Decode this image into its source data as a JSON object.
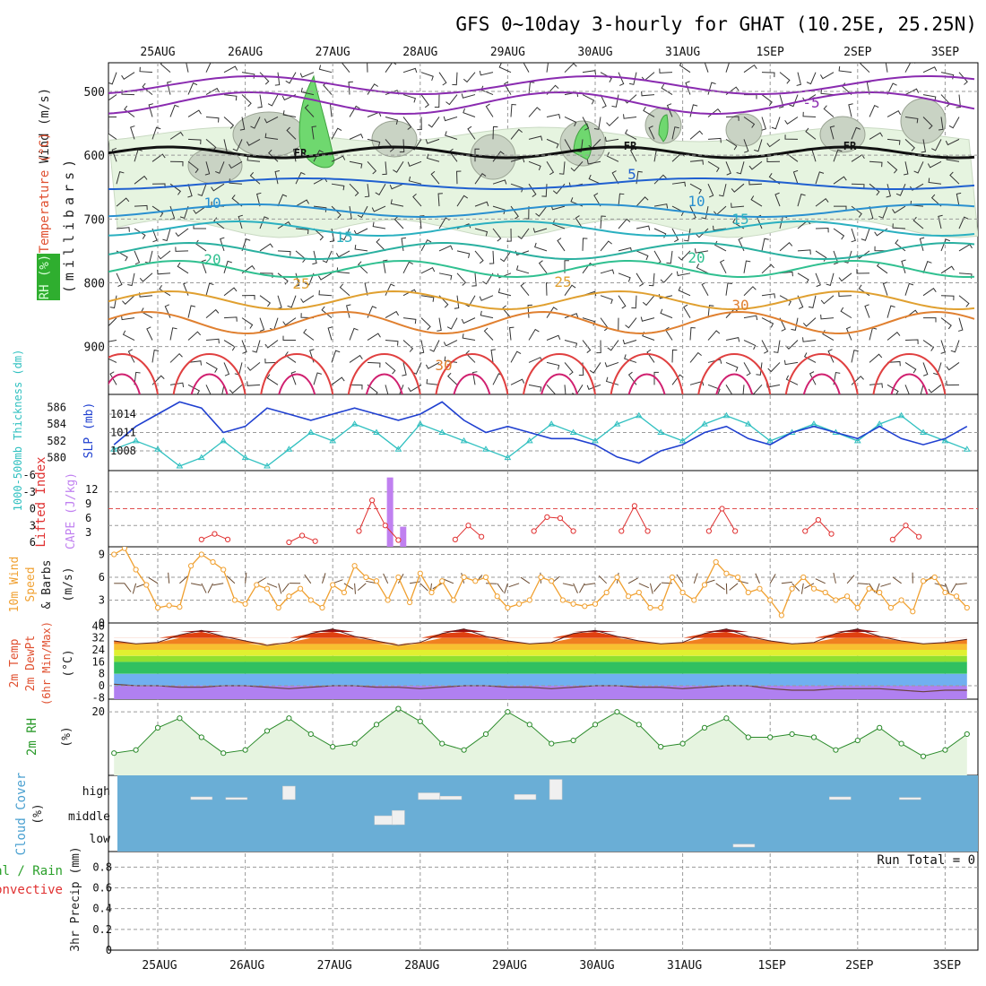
{
  "title": "GFS 0~10day 3-hourly for GHAT (10.25E, 25.25N)",
  "time_axis": {
    "top_labels": [
      "25AUG",
      "26AUG",
      "27AUG",
      "28AUG",
      "29AUG",
      "30AUG",
      "31AUG",
      "1SEP",
      "2SEP",
      "3SEP"
    ],
    "bottom_labels": [
      "25AUG",
      "26AUG",
      "27AUG",
      "28AUG",
      "29AUG",
      "30AUG",
      "31AUG",
      "1SEP",
      "2SEP",
      "3SEP"
    ],
    "start_day_offset": -0.55,
    "end_day_offset": 9.3
  },
  "colors": {
    "rh_green": "#7fdc7f",
    "rh_dark": "#3fbf3f",
    "sky": "#6aaed6",
    "cloud": "#f0f0f0",
    "grid": "#9a9a9a",
    "wind_orange": "#f0a030",
    "cape_violet": "#c080f0",
    "li_red": "#e03030",
    "slp_blue": "#2040d0",
    "thk_cyan": "#30c0c0"
  },
  "panels": {
    "upper": {
      "ylabel_wind": "Wind (m/s)",
      "ylabel_temp": "Temperature (°C)",
      "ylabel_rh": "RH (%)",
      "ylabel_pressure": "(millibars)",
      "pressure_ticks": [
        "500",
        "600",
        "700",
        "800",
        "900"
      ],
      "pressure_range": [
        455,
        975
      ],
      "freezing_label": "FR",
      "contour_labels": [
        "-5",
        "5",
        "10",
        "10",
        "15",
        "15",
        "20",
        "20",
        "25",
        "25",
        "30",
        "30",
        "30",
        "30",
        "30"
      ]
    },
    "slp": {
      "ylabel_thickness": "1000-500mb Thickness (dm)",
      "ylabel_slp": "SLP (mb)",
      "left_ticks": [
        "586",
        "584",
        "582",
        "580"
      ],
      "right_ticks": [
        "1014",
        "1011",
        "1008"
      ]
    },
    "cape": {
      "ylabel_li": "Lifted Index",
      "ylabel_cape": "CAPE (J/kg)",
      "left_ticks": [
        "-6",
        "-3",
        "0",
        "3",
        "6"
      ],
      "right_ticks": [
        "12",
        "9",
        "6",
        "3"
      ]
    },
    "wind10": {
      "ylabel": "10m Wind Speed & Barbs",
      "units": "(m/s)",
      "ticks": [
        "9",
        "6",
        "3",
        "0"
      ]
    },
    "temp2m": {
      "ylabel": "2m Temp 2m DewPt (6hr Min/Max)",
      "units": "(°C)",
      "ticks": [
        "40",
        "32",
        "24",
        "16",
        "8",
        "0",
        "-8"
      ]
    },
    "rh2m": {
      "ylabel": "2m RH",
      "units": "(%)",
      "ticks": [
        "20"
      ]
    },
    "cloud": {
      "ylabel": "Cloud Cover",
      "units": "(%)",
      "levels": [
        "high",
        "middle",
        "low"
      ]
    },
    "precip": {
      "ylabel_total": "Total / Rain",
      "ylabel_conv": "Convective",
      "ylabel_units": "3hr Precip (mm)",
      "ticks": [
        "0.8",
        "0.6",
        "0.4",
        "0.2",
        "0"
      ],
      "run_total": "Run Total = 0"
    }
  },
  "chart_data": [
    {
      "type": "line",
      "name_key": "slp",
      "x": [
        -0.5,
        -0.25,
        0,
        0.25,
        0.5,
        0.75,
        1,
        1.25,
        1.5,
        1.75,
        2,
        2.25,
        2.5,
        2.75,
        3,
        3.25,
        3.5,
        3.75,
        4,
        4.25,
        4.5,
        4.75,
        5,
        5.25,
        5.5,
        5.75,
        6,
        6.25,
        6.5,
        6.75,
        7,
        7.25,
        7.5,
        7.75,
        8,
        8.25,
        8.5,
        8.75,
        9,
        9.25
      ],
      "series": [
        {
          "name": "SLP (mb)",
          "values": [
            1009,
            1012,
            1014,
            1016,
            1015,
            1011,
            1012,
            1015,
            1014,
            1013,
            1014,
            1015,
            1014,
            1013,
            1014,
            1016,
            1013,
            1011,
            1012,
            1011,
            1010,
            1010,
            1009,
            1007,
            1006,
            1008,
            1009,
            1011,
            1012,
            1010,
            1009,
            1011,
            1012,
            1011,
            1010,
            1012,
            1010,
            1009,
            1010,
            1012
          ]
        },
        {
          "name": "1000-500mb Thickness (dm)",
          "values": [
            581,
            582,
            581,
            579,
            580,
            582,
            580,
            579,
            581,
            583,
            582,
            584,
            583,
            581,
            584,
            583,
            582,
            581,
            580,
            582,
            584,
            583,
            582,
            584,
            585,
            583,
            582,
            584,
            585,
            584,
            582,
            583,
            584,
            583,
            582,
            584,
            585,
            583,
            582,
            581
          ]
        }
      ],
      "ylim_slp": [
        1005.5,
        1016.5
      ],
      "ylim_thickness": [
        579,
        587
      ]
    },
    {
      "type": "line",
      "name_key": "lifted_index",
      "x": [
        0.5,
        0.65,
        0.8,
        1.5,
        1.65,
        1.8,
        2.3,
        2.45,
        2.6,
        2.75,
        3.4,
        3.55,
        3.7,
        4.3,
        4.45,
        4.6,
        4.75,
        5.3,
        5.45,
        5.6,
        6.3,
        6.45,
        6.6,
        7.4,
        7.55,
        7.7,
        8.4,
        8.55,
        8.7
      ],
      "values": [
        5.5,
        4.5,
        5.5,
        6,
        4.8,
        5.8,
        4,
        -1.5,
        3,
        5.6,
        5.5,
        3,
        5,
        4,
        1.5,
        1.7,
        4,
        4,
        -0.5,
        4,
        4,
        0,
        4,
        4,
        2,
        4.5,
        5.5,
        3,
        5
      ],
      "ylim": [
        6,
        -6
      ]
    },
    {
      "type": "bar",
      "name_key": "cape",
      "x": [
        2.65,
        2.8
      ],
      "values": [
        14.5,
        4.2
      ],
      "ylim": [
        0,
        15
      ]
    },
    {
      "type": "line",
      "name_key": "wind_speed_10m",
      "x": [
        -0.5,
        -0.38,
        -0.25,
        -0.13,
        0,
        0.13,
        0.25,
        0.38,
        0.5,
        0.63,
        0.75,
        0.88,
        1,
        1.13,
        1.25,
        1.38,
        1.5,
        1.63,
        1.75,
        1.88,
        2,
        2.13,
        2.25,
        2.38,
        2.5,
        2.63,
        2.75,
        2.88,
        3,
        3.13,
        3.25,
        3.38,
        3.5,
        3.63,
        3.75,
        3.88,
        4,
        4.13,
        4.25,
        4.38,
        4.5,
        4.63,
        4.75,
        4.88,
        5,
        5.13,
        5.25,
        5.38,
        5.5,
        5.63,
        5.75,
        5.88,
        6,
        6.13,
        6.25,
        6.38,
        6.5,
        6.63,
        6.75,
        6.88,
        7,
        7.13,
        7.25,
        7.38,
        7.5,
        7.63,
        7.75,
        7.88,
        8,
        8.13,
        8.25,
        8.38,
        8.5,
        8.63,
        8.75,
        8.88,
        9,
        9.13,
        9.25
      ],
      "values": [
        9,
        9.8,
        7,
        5,
        2,
        2.3,
        2.1,
        7.5,
        9,
        8,
        7,
        3,
        2.5,
        5,
        4.5,
        2,
        3.5,
        4.5,
        3,
        2,
        5,
        4,
        7.5,
        6,
        5.5,
        3,
        6,
        2.7,
        6.5,
        4,
        5.5,
        3,
        6,
        5.5,
        6,
        3.5,
        2,
        2.5,
        3,
        6,
        5.5,
        3,
        2.5,
        2.2,
        2.5,
        4,
        6,
        3.5,
        4,
        2,
        2,
        6,
        4,
        3,
        5,
        8,
        6.5,
        6,
        4,
        4.5,
        3,
        1,
        4.5,
        6,
        4.5,
        4,
        3,
        3.5,
        2,
        4.5,
        4,
        2,
        3,
        1.5,
        5.5,
        6,
        4,
        3.5,
        2
      ],
      "ylim": [
        0,
        10
      ]
    },
    {
      "type": "area",
      "name_key": "temp_2m",
      "x": [
        -0.5,
        -0.25,
        0,
        0.25,
        0.5,
        0.75,
        1,
        1.25,
        1.5,
        1.75,
        2,
        2.25,
        2.5,
        2.75,
        3,
        3.25,
        3.5,
        3.75,
        4,
        4.25,
        4.5,
        4.75,
        5,
        5.25,
        5.5,
        5.75,
        6,
        6.25,
        6.5,
        6.75,
        7,
        7.25,
        7.5,
        7.75,
        8,
        8.25,
        8.5,
        8.75,
        9,
        9.25
      ],
      "values": [
        30,
        28,
        29,
        34,
        37,
        33,
        30,
        27,
        29,
        35,
        38,
        33,
        30,
        27,
        29,
        35,
        38,
        33,
        30,
        28,
        29,
        35,
        37,
        33,
        30,
        28,
        29,
        35,
        38,
        33,
        30,
        28,
        29,
        35,
        38,
        33,
        30,
        28,
        29,
        31
      ],
      "dewpoint": [
        1,
        0,
        0,
        -1,
        -1,
        0,
        0,
        -1,
        -2,
        -1,
        0,
        0,
        -1,
        -1,
        -2,
        -1,
        0,
        0,
        -1,
        -1,
        -2,
        -1,
        0,
        0,
        -1,
        -1,
        -2,
        -1,
        0,
        0,
        -2,
        -3,
        -3,
        -2,
        -2,
        -2,
        -3,
        -4,
        -3,
        -3
      ],
      "ylim": [
        -9,
        42
      ]
    },
    {
      "type": "line",
      "name_key": "rh_2m",
      "x": [
        -0.5,
        -0.25,
        0,
        0.25,
        0.5,
        0.75,
        1,
        1.25,
        1.5,
        1.75,
        2,
        2.25,
        2.5,
        2.75,
        3,
        3.25,
        3.5,
        3.75,
        4,
        4.25,
        4.5,
        4.75,
        5,
        5.25,
        5.5,
        5.75,
        6,
        6.25,
        6.5,
        6.75,
        7,
        7.25,
        7.5,
        7.75,
        8,
        8.25,
        8.5,
        8.75,
        9,
        9.25
      ],
      "values": [
        7,
        8,
        15,
        18,
        12,
        7,
        8,
        14,
        18,
        13,
        9,
        10,
        16,
        21,
        17,
        10,
        8,
        13,
        20,
        16,
        10,
        11,
        16,
        20,
        16,
        9,
        10,
        15,
        18,
        12,
        12,
        13,
        12,
        8,
        11,
        15,
        10,
        6,
        8,
        13
      ],
      "ylim": [
        0,
        24
      ]
    },
    {
      "type": "bar",
      "name_key": "cloud_cover",
      "x": [
        0.5,
        0.9,
        1.5,
        2.6,
        2.75,
        3.1,
        3.35,
        4.2,
        4.55,
        6.7,
        7.8,
        8.6
      ],
      "level": [
        "high",
        "high",
        "high",
        "middle",
        "middle",
        "high",
        "high",
        "high",
        "high",
        "low",
        "high",
        "high"
      ],
      "values": [
        8,
        6,
        40,
        25,
        40,
        20,
        10,
        15,
        60,
        8,
        8,
        6
      ],
      "ylim": [
        0,
        100
      ]
    },
    {
      "type": "bar",
      "name_key": "precip_3hr",
      "x": [],
      "values": [],
      "ylim": [
        0,
        0.95
      ]
    }
  ]
}
